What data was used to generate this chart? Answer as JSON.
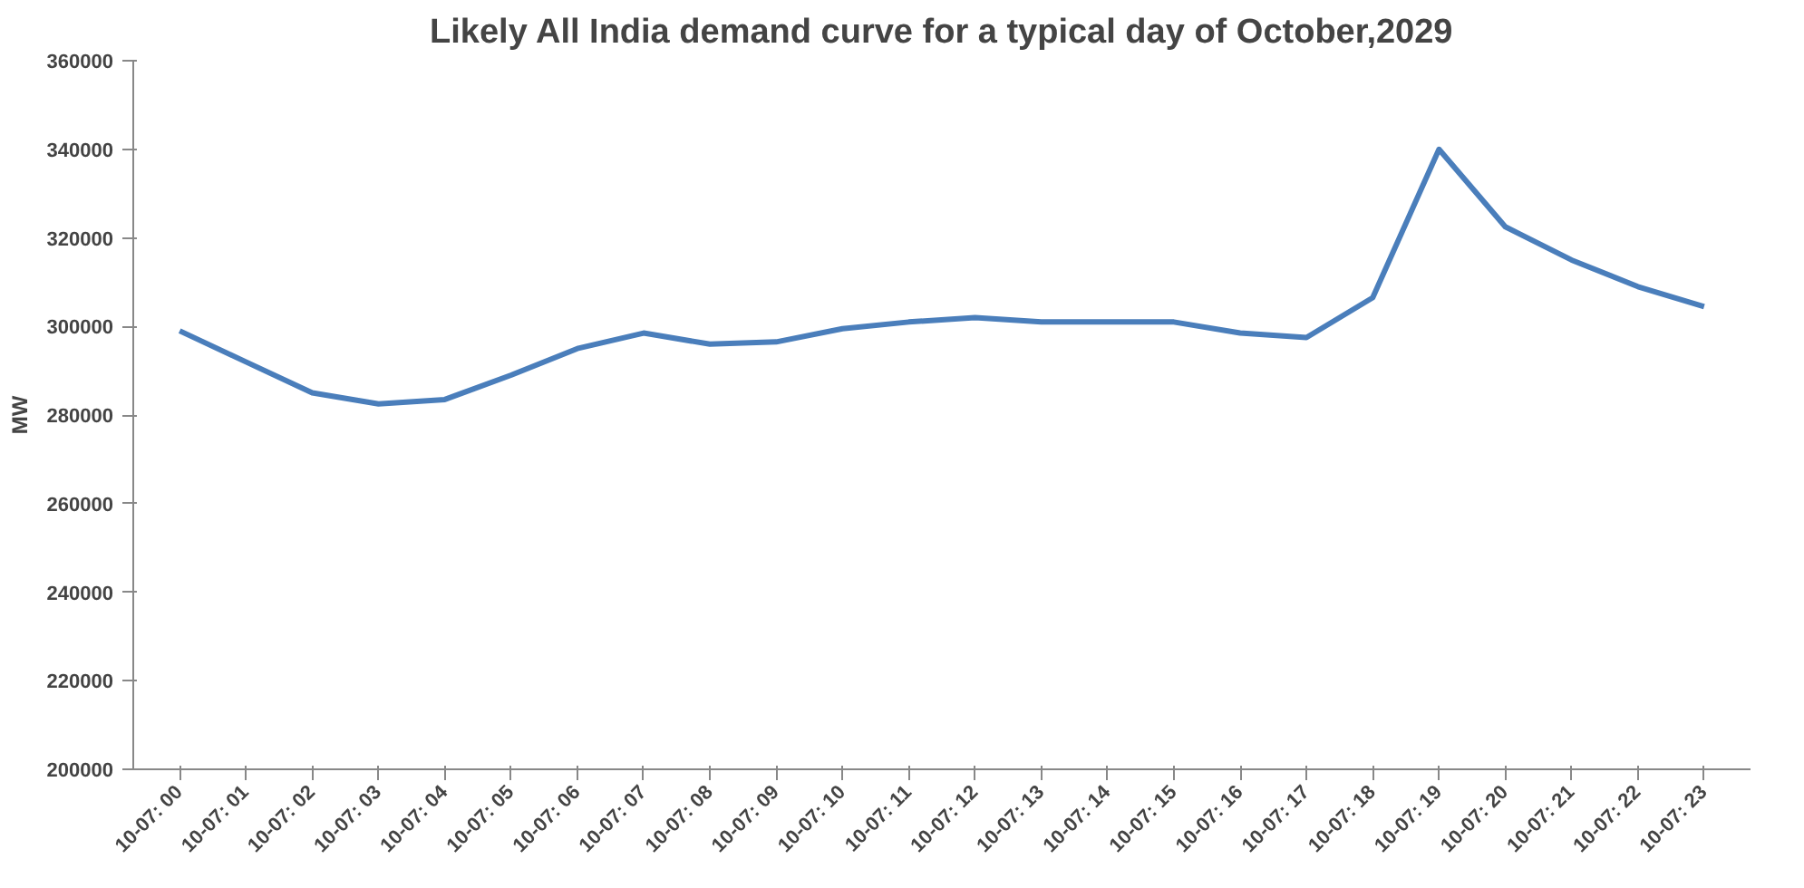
{
  "chart_data": {
    "type": "line",
    "title": "Likely All India demand curve for a typical day of October,2029",
    "ylabel": "MW",
    "categories": [
      "10-07: 00",
      "10-07: 01",
      "10-07: 02",
      "10-07: 03",
      "10-07: 04",
      "10-07: 05",
      "10-07: 06",
      "10-07: 07",
      "10-07: 08",
      "10-07: 09",
      "10-07: 10",
      "10-07: 11",
      "10-07: 12",
      "10-07: 13",
      "10-07: 14",
      "10-07: 15",
      "10-07: 16",
      "10-07: 17",
      "10-07: 18",
      "10-07: 19",
      "10-07: 20",
      "10-07: 21",
      "10-07: 22",
      "10-07: 23"
    ],
    "series": [
      {
        "color": "#4a7ebb",
        "values": [
          299000,
          292000,
          285000,
          282500,
          283500,
          289000,
          295000,
          298500,
          296000,
          296500,
          299500,
          301000,
          302000,
          301000,
          301000,
          301000,
          298500,
          297500,
          306500,
          340000,
          322500,
          315000,
          309000,
          304500
        ]
      }
    ],
    "ylim": [
      200000,
      360000
    ],
    "yticks": [
      200000,
      220000,
      240000,
      260000,
      280000,
      300000,
      320000,
      340000,
      360000
    ],
    "grid": false,
    "marker": "none",
    "line_style": "solid"
  }
}
